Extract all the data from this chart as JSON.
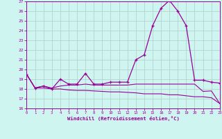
{
  "x": [
    0,
    1,
    2,
    3,
    4,
    5,
    6,
    7,
    8,
    9,
    10,
    11,
    12,
    13,
    14,
    15,
    16,
    17,
    18,
    19,
    20,
    21,
    22,
    23
  ],
  "line_main": [
    19.5,
    18.1,
    18.3,
    18.0,
    19.0,
    18.5,
    18.5,
    19.6,
    18.5,
    18.5,
    18.7,
    18.7,
    18.7,
    21.0,
    21.5,
    24.5,
    26.3,
    27.1,
    26.0,
    24.5,
    18.9,
    18.9,
    18.7,
    18.6
  ],
  "line_mid": [
    19.5,
    18.1,
    18.3,
    18.1,
    18.3,
    18.4,
    18.4,
    18.5,
    18.4,
    18.4,
    18.4,
    18.4,
    18.4,
    18.5,
    18.5,
    18.5,
    18.5,
    18.5,
    18.5,
    18.5,
    18.5,
    17.75,
    17.8,
    16.5
  ],
  "line_low": [
    19.5,
    18.1,
    18.1,
    18.0,
    18.0,
    17.9,
    17.85,
    17.85,
    17.8,
    17.75,
    17.7,
    17.7,
    17.65,
    17.6,
    17.5,
    17.5,
    17.5,
    17.4,
    17.4,
    17.3,
    17.2,
    17.2,
    17.1,
    16.5
  ],
  "bg_color": "#cef5ef",
  "line_color": "#990099",
  "grid_color": "#b0ccc8",
  "xlabel": "Windchill (Refroidissement éolien,°C)",
  "ylim": [
    16,
    27
  ],
  "xlim": [
    0,
    23
  ],
  "yticks": [
    16,
    17,
    18,
    19,
    20,
    21,
    22,
    23,
    24,
    25,
    26,
    27
  ],
  "xticks": [
    0,
    1,
    2,
    3,
    4,
    5,
    6,
    7,
    8,
    9,
    10,
    11,
    12,
    13,
    14,
    15,
    16,
    17,
    18,
    19,
    20,
    21,
    22,
    23
  ]
}
